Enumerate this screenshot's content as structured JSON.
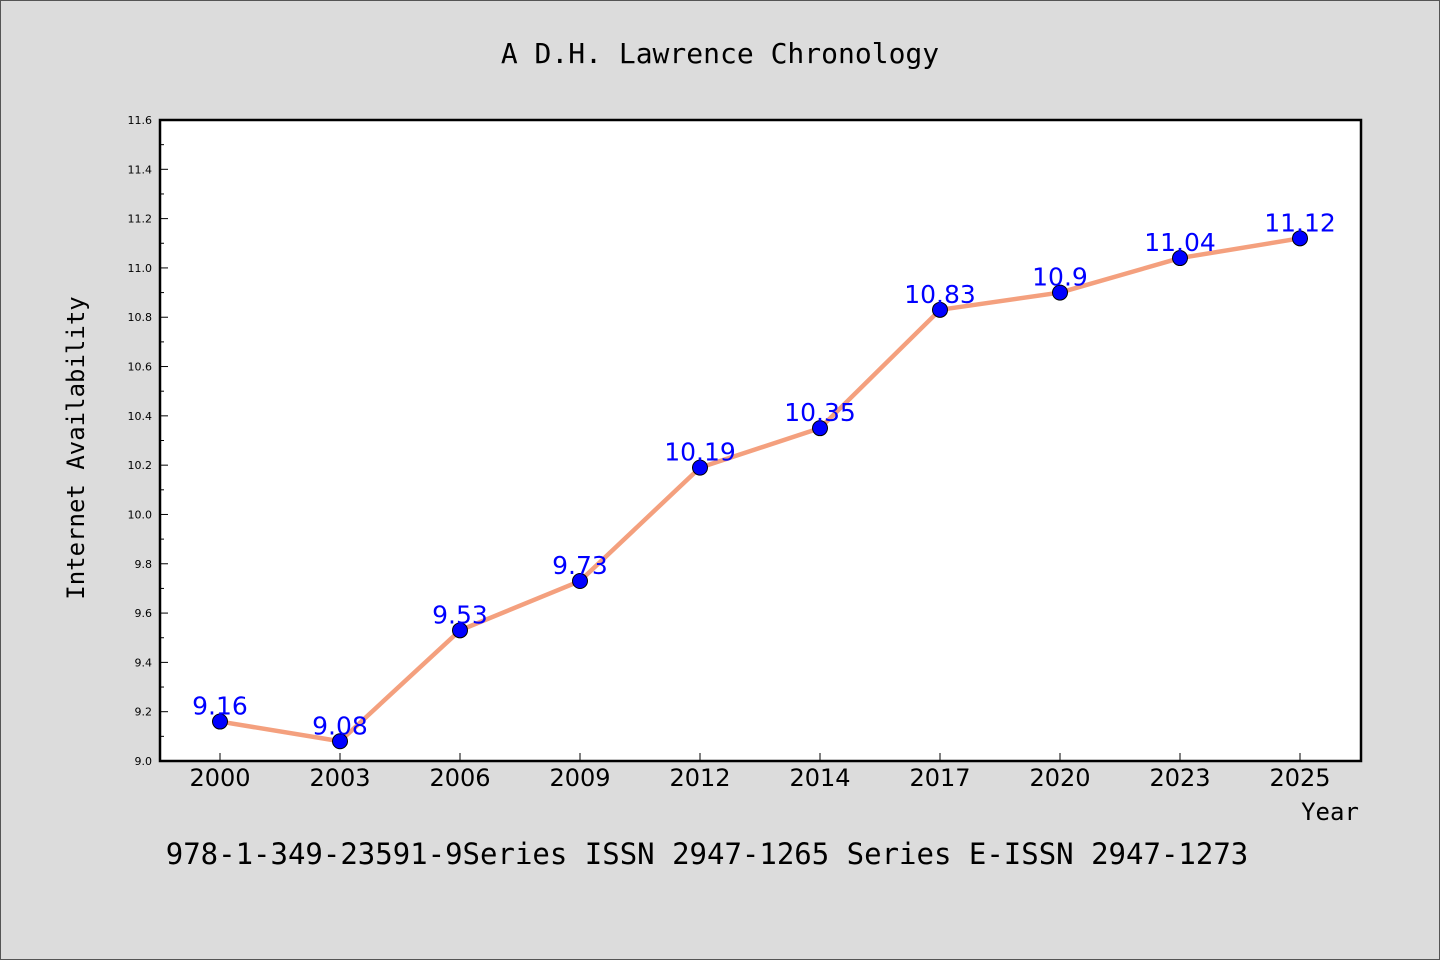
{
  "chart_data": {
    "type": "line",
    "title": "A D.H. Lawrence Chronology",
    "xlabel": "Year",
    "ylabel": "Internet Availability",
    "categories": [
      "2000",
      "2003",
      "2006",
      "2009",
      "2012",
      "2014",
      "2017",
      "2020",
      "2023",
      "2025"
    ],
    "series": [
      {
        "values": [
          9.16,
          9.08,
          9.53,
          9.73,
          10.19,
          10.35,
          10.83,
          10.9,
          11.04,
          11.12
        ],
        "data_labels": [
          "9.16",
          "9.08",
          "9.53",
          "9.73",
          "10.19",
          "10.35",
          "10.83",
          "10.9",
          "11.04",
          "11.12"
        ],
        "line_color": "#f4a07e",
        "marker_color": "#0000ff"
      }
    ],
    "ylim": [
      9.0,
      11.6
    ],
    "yticks": [
      "9.0",
      "9.2",
      "9.4",
      "9.6",
      "9.8",
      "10.0",
      "10.2",
      "10.4",
      "10.6",
      "10.8",
      "11.0",
      "11.2",
      "11.4",
      "11.6"
    ],
    "grid": false,
    "legend": "none"
  },
  "footer": {
    "text": "978-1-349-23591-9Series ISSN 2947-1265 Series E-ISSN 2947-1273"
  },
  "colors": {
    "background": "#dcdcdc",
    "plot_background": "#ffffff",
    "axis": "#000000",
    "data_label": "#0000ff"
  }
}
